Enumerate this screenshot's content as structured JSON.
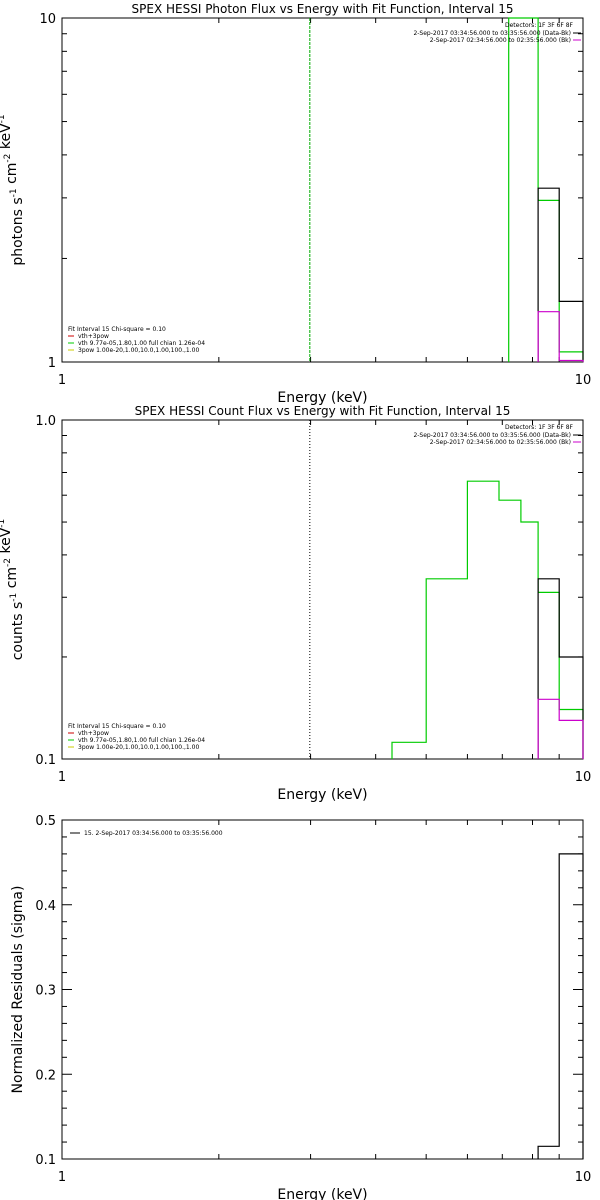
{
  "chart_data": [
    {
      "type": "line",
      "title": "SPEX HESSI Photon Flux vs Energy with Fit Function, Interval 15",
      "xlabel": "Energy (keV)",
      "ylabel_main": "photons s",
      "ylabel_e1": "-1",
      "ylabel_mid": " cm",
      "ylabel_e2": "-2",
      "ylabel_mid2": " keV",
      "ylabel_e3": "-1",
      "xscale": "log",
      "yscale": "log",
      "xlim": [
        1,
        10
      ],
      "ylim": [
        1,
        10
      ],
      "x_ticks": [
        "1",
        "10"
      ],
      "y_ticks": [
        "1",
        "10"
      ],
      "legend_right": {
        "title": "Detectors: 1F 3F 6F 8F",
        "lines": [
          {
            "text": "2-Sep-2017 03:34:56.000 to 03:35:56.000 (Data-Bk)",
            "color": "#000000"
          },
          {
            "text": "2-Sep-2017 02:34:56.000 to 02:35:56.000 (Bk)",
            "color": "#cc00cc"
          }
        ]
      },
      "legend_left": [
        {
          "text": "Fit Interval 15   Chi-square = 0.10",
          "color": null
        },
        {
          "text": "vth+3pow",
          "color": "#cc0000"
        },
        {
          "text": "vth 9.77e-05,1.80,1.00   full chian 1.26e-04",
          "color": "#00cc00"
        },
        {
          "text": "3pow 1.00e-20,1.00,10.0,1.00,100.,1.00",
          "color": "#cccc00"
        }
      ],
      "vline_x": 2.99,
      "vline_color": "#00aa00",
      "vline_style": "dashed",
      "series": [
        {
          "name": "vth+3pow",
          "color": "#00cc00",
          "step": true,
          "edges": [
            7.2,
            7.6,
            8.2,
            9.0,
            10.0
          ],
          "values": [
            10,
            10,
            2.95,
            1.07
          ]
        },
        {
          "name": "Data-Bk",
          "color": "#000000",
          "step": true,
          "edges": [
            8.2,
            9.0,
            10.0
          ],
          "values": [
            3.2,
            1.5
          ]
        },
        {
          "name": "Bk",
          "color": "#cc00cc",
          "step": true,
          "edges": [
            8.2,
            9.0,
            10.0
          ],
          "values": [
            1.4,
            1.01
          ]
        }
      ]
    },
    {
      "type": "line",
      "title": "SPEX HESSI Count Flux vs Energy with Fit Function, Interval 15",
      "xlabel": "Energy (keV)",
      "ylabel_main": "counts s",
      "ylabel_e1": "-1",
      "ylabel_mid": " cm",
      "ylabel_e2": "-2",
      "ylabel_mid2": " keV",
      "ylabel_e3": "-1",
      "xscale": "log",
      "yscale": "log",
      "xlim": [
        1,
        10
      ],
      "ylim": [
        0.1,
        1.0
      ],
      "x_ticks": [
        "1",
        "10"
      ],
      "y_ticks": [
        "0.1",
        "1.0"
      ],
      "legend_right": {
        "title": "Detectors: 1F 3F 6F 8F",
        "lines": [
          {
            "text": "2-Sep-2017 03:34:56.000 to 03:35:56.000 (Data-Bk)",
            "color": "#000000"
          },
          {
            "text": "2-Sep-2017 02:34:56.000 to 02:35:56.000 (Bk)",
            "color": "#cc00cc"
          }
        ]
      },
      "legend_left": [
        {
          "text": "Fit Interval 15   Chi-square = 0.10",
          "color": null
        },
        {
          "text": "vth+3pow",
          "color": "#cc0000"
        },
        {
          "text": "vth 9.77e-05,1.80,1.00   full chian 1.26e-04",
          "color": "#00cc00"
        },
        {
          "text": "3pow 1.00e-20,1.00,10.0,1.00,100.,1.00",
          "color": "#cccc00"
        }
      ],
      "vline_x": 2.99,
      "vline_color": "#000000",
      "vline_style": "dotted",
      "series": [
        {
          "name": "vth+3pow",
          "color": "#00cc00",
          "step": true,
          "edges": [
            4.3,
            5.0,
            6.0,
            6.9,
            7.6,
            8.2,
            9.0,
            10.0
          ],
          "values": [
            0.112,
            0.34,
            0.66,
            0.58,
            0.5,
            0.31,
            0.14
          ]
        },
        {
          "name": "Data-Bk",
          "color": "#000000",
          "step": true,
          "edges": [
            8.2,
            9.0,
            10.0
          ],
          "values": [
            0.34,
            0.2
          ]
        },
        {
          "name": "Bk",
          "color": "#cc00cc",
          "step": true,
          "edges": [
            8.2,
            9.0,
            10.0
          ],
          "values": [
            0.15,
            0.13
          ]
        }
      ]
    },
    {
      "type": "line",
      "title": "",
      "xlabel": "Energy (keV)",
      "ylabel_main": "Normalized Residuals (sigma)",
      "xscale": "log",
      "yscale": "linear",
      "xlim": [
        1,
        10
      ],
      "ylim": [
        0.1,
        0.5
      ],
      "x_ticks": [
        "1",
        "10"
      ],
      "y_ticks": [
        "0.1",
        "0.2",
        "0.3",
        "0.4",
        "0.5"
      ],
      "legend_top": {
        "text": "15.  2-Sep-2017 03:34:56.000 to 03:35:56.000",
        "color": "#000000"
      },
      "series": [
        {
          "name": "15",
          "color": "#000000",
          "step": true,
          "edges": [
            8.2,
            9.0,
            10.0
          ],
          "values": [
            0.115,
            0.46
          ]
        }
      ]
    }
  ]
}
